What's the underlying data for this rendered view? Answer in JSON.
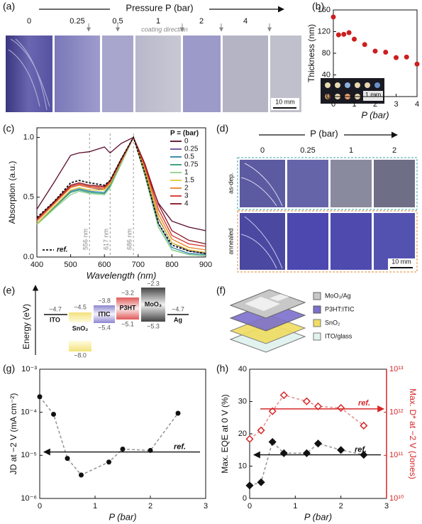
{
  "chart_data": [
    {
      "type": "scatter",
      "label": "(b)",
      "x": [
        0,
        0.25,
        0.5,
        0.75,
        1,
        1.5,
        2,
        2.5,
        3,
        3.5,
        4
      ],
      "values": [
        147,
        114,
        115,
        118,
        106,
        96,
        84,
        82,
        72,
        73,
        60
      ],
      "color": "#cc1f1f",
      "xlim": [
        0,
        4
      ],
      "xticks": [
        0,
        1,
        2,
        3,
        4
      ],
      "ylim": [
        0,
        160
      ],
      "yticks": [
        0,
        40,
        80,
        120,
        160
      ],
      "xlabel": "P (bar)",
      "ylabel": "Thickness (nm)",
      "inset_scale": "1 mm"
    },
    {
      "type": "line",
      "label": "(c)",
      "x": [
        400,
        450,
        500,
        525,
        556,
        600,
        617,
        650,
        686,
        720,
        760,
        800,
        850,
        900
      ],
      "series": [
        {
          "name": "0",
          "color": "#5a0a2e",
          "values": [
            0.4,
            0.62,
            0.85,
            0.87,
            0.88,
            0.92,
            0.87,
            0.95,
            1.0,
            0.75,
            0.45,
            0.3,
            0.25,
            0.22
          ]
        },
        {
          "name": "0.25",
          "color": "#6b4a9e",
          "values": [
            0.3,
            0.44,
            0.58,
            0.6,
            0.58,
            0.56,
            0.62,
            0.8,
            1.0,
            0.72,
            0.32,
            0.12,
            0.05,
            0.03
          ]
        },
        {
          "name": "0.5",
          "color": "#2f7fa8",
          "values": [
            0.28,
            0.42,
            0.55,
            0.57,
            0.55,
            0.54,
            0.6,
            0.79,
            1.0,
            0.7,
            0.28,
            0.08,
            0.03,
            0.02
          ]
        },
        {
          "name": "0.75",
          "color": "#2a9a7a",
          "values": [
            0.27,
            0.41,
            0.54,
            0.56,
            0.54,
            0.53,
            0.59,
            0.78,
            1.0,
            0.68,
            0.25,
            0.06,
            0.02,
            0.01
          ]
        },
        {
          "name": "1",
          "color": "#8fd18a",
          "values": [
            0.27,
            0.4,
            0.52,
            0.55,
            0.53,
            0.52,
            0.58,
            0.78,
            1.0,
            0.68,
            0.25,
            0.06,
            0.02,
            0.01
          ]
        },
        {
          "name": "1.5",
          "color": "#e8c830",
          "values": [
            0.28,
            0.42,
            0.56,
            0.58,
            0.56,
            0.56,
            0.61,
            0.8,
            1.0,
            0.72,
            0.33,
            0.12,
            0.06,
            0.04
          ]
        },
        {
          "name": "2",
          "color": "#e8842a",
          "values": [
            0.3,
            0.44,
            0.58,
            0.6,
            0.58,
            0.57,
            0.62,
            0.8,
            1.0,
            0.74,
            0.36,
            0.15,
            0.08,
            0.06
          ]
        },
        {
          "name": "3",
          "color": "#d6302a",
          "values": [
            0.31,
            0.45,
            0.59,
            0.61,
            0.59,
            0.58,
            0.63,
            0.81,
            1.0,
            0.76,
            0.4,
            0.18,
            0.11,
            0.09
          ]
        },
        {
          "name": "4",
          "color": "#8a1020",
          "values": [
            0.32,
            0.46,
            0.6,
            0.62,
            0.6,
            0.59,
            0.64,
            0.82,
            1.0,
            0.78,
            0.44,
            0.22,
            0.14,
            0.11
          ]
        },
        {
          "name": "ref.",
          "color": "#111111",
          "dash": true,
          "values": [
            0.33,
            0.46,
            0.62,
            0.64,
            0.62,
            0.6,
            0.64,
            0.82,
            1.0,
            0.7,
            0.28,
            0.1,
            0.05,
            0.03
          ]
        }
      ],
      "legend_title": "P = (bar)",
      "xlim": [
        400,
        900
      ],
      "xticks": [
        400,
        500,
        600,
        700,
        800,
        900
      ],
      "ylim": [
        0,
        1.08
      ],
      "yticks": [
        {
          "value": 0,
          "label": "0.0"
        },
        {
          "value": 0.5,
          "label": "0.5"
        },
        {
          "value": 1,
          "label": "1.0"
        }
      ],
      "markers": [
        {
          "value": 556,
          "label": "556 nm"
        },
        {
          "value": 617,
          "label": "617 nm"
        },
        {
          "value": 686,
          "label": "686 nm"
        }
      ],
      "xlabel": "Wavelength (nm)",
      "ylabel": "Absorption (a.u.)"
    },
    {
      "type": "scatter",
      "label": "(g)",
      "ylog": true,
      "series": [
        {
          "color": "#111111",
          "marker": "circle",
          "line": true,
          "x": [
            0,
            0.25,
            0.5,
            0.75,
            1.25,
            1.5,
            2,
            2.5
          ],
          "values": [
            0.00023,
            9e-05,
            8.5e-06,
            3.5e-06,
            7e-06,
            1.4e-05,
            1.3e-05,
            9.5e-05
          ]
        }
      ],
      "references": [
        {
          "label": "ref.",
          "value": 1.2e-05
        }
      ],
      "xlim": [
        0,
        3
      ],
      "xticks": [
        0,
        1,
        2,
        3
      ],
      "ylim": [
        1e-06,
        0.001
      ],
      "yticks": [
        {
          "value": 1e-06,
          "label": "10⁻⁶"
        },
        {
          "value": 1e-05,
          "label": "10⁻⁵"
        },
        {
          "value": 0.0001,
          "label": "10⁻⁴"
        },
        {
          "value": 0.001,
          "label": "10⁻³"
        }
      ],
      "xlabel": "P (bar)",
      "ylabel": "JD at −2 V (mA cm⁻²)"
    },
    {
      "type": "scatter",
      "label": "(h)",
      "y2log": true,
      "series": [
        {
          "color": "#111111",
          "marker": "diamond",
          "line": true,
          "x": [
            0,
            0.25,
            0.5,
            0.75,
            1.25,
            1.5,
            2,
            2.5
          ],
          "values": [
            4,
            5,
            17.5,
            14,
            14,
            17,
            15,
            13.5
          ]
        },
        {
          "color": "#d62728",
          "marker": "diamond-open",
          "line": true,
          "axis": "y2",
          "x": [
            0,
            0.25,
            0.5,
            0.75,
            1.25,
            1.5,
            2,
            2.5
          ],
          "values": [
            240000000000.0,
            380000000000.0,
            1060000000000.0,
            2500000000000.0,
            1800000000000.0,
            1370000000000.0,
            1260000000000.0,
            490000000000.0
          ]
        }
      ],
      "references": [
        {
          "label": "ref.",
          "value": 13.5
        },
        {
          "label": "ref.",
          "value": 1200000000000.0,
          "axis": "y2"
        }
      ],
      "xlim": [
        0,
        3
      ],
      "xticks": [
        0,
        1,
        2,
        3
      ],
      "ylim": [
        0,
        40
      ],
      "yticks": [
        0,
        10,
        20,
        30,
        40
      ],
      "y2lim": [
        10000000000.0,
        10000000000000.0
      ],
      "y2ticks": [
        {
          "value": 10000000000.0,
          "label": "10¹⁰"
        },
        {
          "value": 100000000000.0,
          "label": "10¹¹"
        },
        {
          "value": 1000000000000.0,
          "label": "10¹²"
        },
        {
          "value": 10000000000000.0,
          "label": "10¹³"
        }
      ],
      "y2color": "#d62728",
      "xlabel": "P (bar)",
      "ylabel": "Max. EQE at 0 V (%)",
      "y2label": "Max. D* at −2 V (Jones)"
    }
  ],
  "photo_a": {
    "label": "(a)",
    "title": "Pressure P (bar)",
    "pressures": [
      "0",
      "0.25",
      "0.5",
      "1",
      "2",
      "4"
    ],
    "note": "coating direction",
    "scale": "10 mm"
  },
  "photo_d": {
    "label": "(d)",
    "title": "P (bar)",
    "pressures": [
      "0",
      "0.25",
      "1",
      "2"
    ],
    "rows": [
      "as-dep.",
      "annealed"
    ],
    "scale": "10 mm"
  },
  "energy_diagram": {
    "label": "(e)",
    "axis": "Energy (eV)",
    "ito": {
      "name": "ITO",
      "level": "−4.7"
    },
    "sno2": {
      "name": "SnO₂",
      "top": "−4.5",
      "bottom": "−8.0"
    },
    "itic": {
      "name": "ITIC",
      "top": "−3.8",
      "bottom": "−5.4"
    },
    "p3ht": {
      "name": "P3HT",
      "top": "−3.2",
      "bottom": "−5.1"
    },
    "moo3": {
      "name": "MoO₃",
      "top": "−2.3",
      "bottom": "−5.3"
    },
    "ag": {
      "name": "Ag",
      "level": "−4.7"
    }
  },
  "device": {
    "label": "(f)",
    "layers": [
      "MoO₃/Ag",
      "P3HT:ITIC",
      "SnO₂",
      "ITO/glass"
    ]
  }
}
